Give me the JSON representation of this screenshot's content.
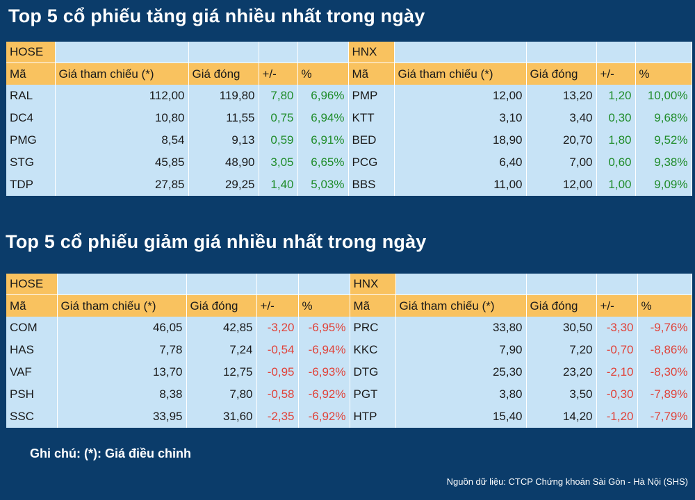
{
  "gainers": {
    "title": "Top 5 cổ phiếu tăng giá nhiều nhất trong ngày",
    "hose": {
      "exchange": "HOSE",
      "headers": [
        "Mã",
        "Giá tham chiếu (*)",
        "Giá đóng",
        "+/-",
        "%"
      ],
      "rows": [
        [
          "RAL",
          "112,00",
          "119,80",
          "7,80",
          "6,96%"
        ],
        [
          "DC4",
          "10,80",
          "11,55",
          "0,75",
          "6,94%"
        ],
        [
          "PMG",
          "8,54",
          "9,13",
          "0,59",
          "6,91%"
        ],
        [
          "STG",
          "45,85",
          "48,90",
          "3,05",
          "6,65%"
        ],
        [
          "TDP",
          "27,85",
          "29,25",
          "1,40",
          "5,03%"
        ]
      ]
    },
    "hnx": {
      "exchange": "HNX",
      "headers": [
        "Mã",
        "Giá tham chiếu (*)",
        "Giá đóng",
        "+/-",
        "%"
      ],
      "rows": [
        [
          "PMP",
          "12,00",
          "13,20",
          "1,20",
          "10,00%"
        ],
        [
          "KTT",
          "3,10",
          "3,40",
          "0,30",
          "9,68%"
        ],
        [
          "BED",
          "18,90",
          "20,70",
          "1,80",
          "9,52%"
        ],
        [
          "PCG",
          "6,40",
          "7,00",
          "0,60",
          "9,38%"
        ],
        [
          "BBS",
          "11,00",
          "12,00",
          "1,00",
          "9,09%"
        ]
      ]
    }
  },
  "losers": {
    "title": "Top 5 cổ phiếu giảm giá nhiều nhất trong ngày",
    "hose": {
      "exchange": "HOSE",
      "headers": [
        "Mã",
        "Giá tham chiếu (*)",
        "Giá đóng",
        "+/-",
        "%"
      ],
      "rows": [
        [
          "COM",
          "46,05",
          "42,85",
          "-3,20",
          "-6,95%"
        ],
        [
          "HAS",
          "7,78",
          "7,24",
          "-0,54",
          "-6,94%"
        ],
        [
          "VAF",
          "13,70",
          "12,75",
          "-0,95",
          "-6,93%"
        ],
        [
          "PSH",
          "8,38",
          "7,80",
          "-0,58",
          "-6,92%"
        ],
        [
          "SSC",
          "33,95",
          "31,60",
          "-2,35",
          "-6,92%"
        ]
      ]
    },
    "hnx": {
      "exchange": "HNX",
      "headers": [
        "Mã",
        "Giá tham chiếu (*)",
        "Giá đóng",
        "+/-",
        "%"
      ],
      "rows": [
        [
          "PRC",
          "33,80",
          "30,50",
          "-3,30",
          "-9,76%"
        ],
        [
          "KKC",
          "7,90",
          "7,20",
          "-0,70",
          "-8,86%"
        ],
        [
          "DTG",
          "25,30",
          "23,20",
          "-2,10",
          "-8,30%"
        ],
        [
          "PGT",
          "3,80",
          "3,50",
          "-0,30",
          "-7,89%"
        ],
        [
          "HTP",
          "15,40",
          "14,20",
          "-1,20",
          "-7,79%"
        ]
      ]
    }
  },
  "note": "Ghi chú: (*): Giá điều chỉnh",
  "source": "Nguồn dữ liệu: CTCP Chứng khoán Sài Gòn - Hà Nội (SHS)",
  "colors": {
    "background": "#0b3c6a",
    "header": "#f9c25f",
    "cell": "#c7e3f6",
    "up": "#1f8c2a",
    "down": "#e0433a"
  }
}
